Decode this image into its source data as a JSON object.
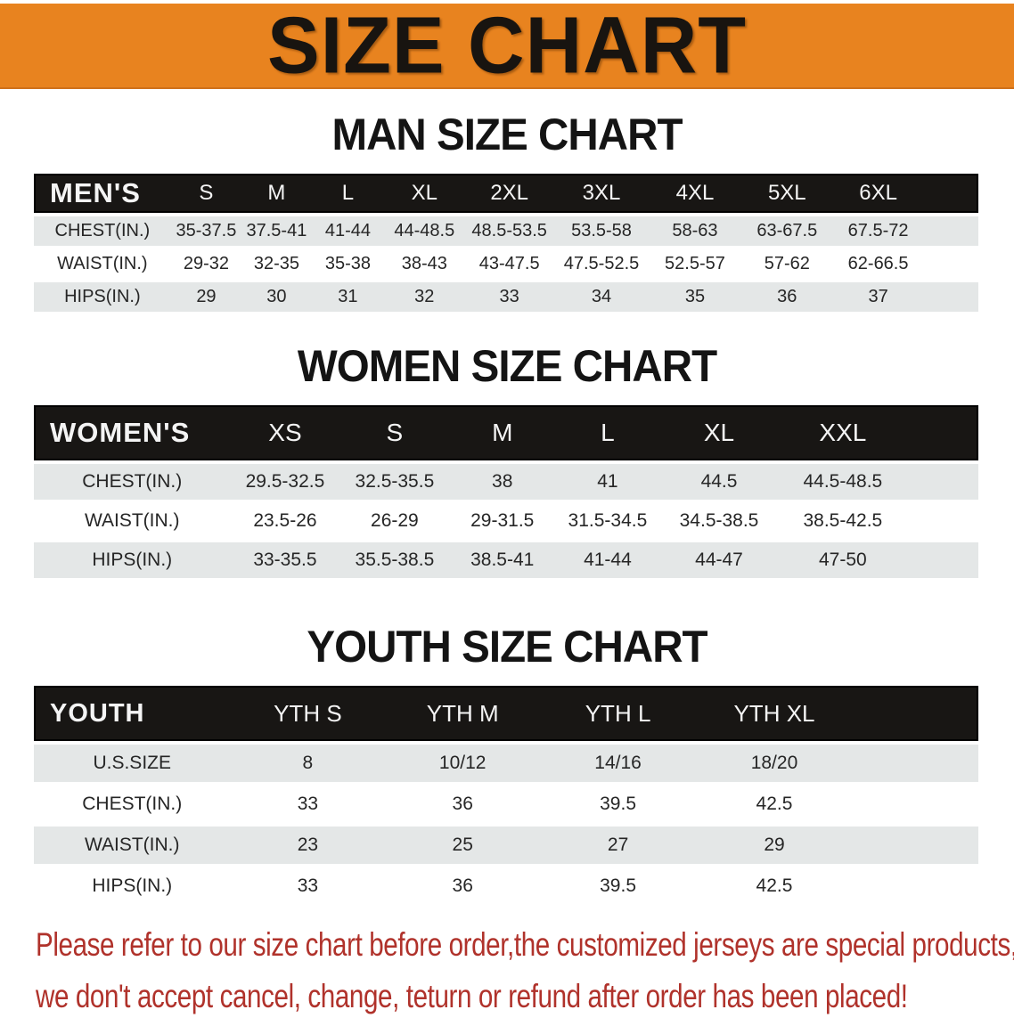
{
  "banner": {
    "title": "SIZE CHART"
  },
  "colors": {
    "banner_orange": "#e8831f",
    "table_header_black": "#181614",
    "row_gray": "#e4e7e7",
    "disclaimer_red": "#b0322b"
  },
  "sections": [
    {
      "heading": "MAN SIZE CHART",
      "table": {
        "header_label": "MEN'S",
        "columns": [
          "S",
          "M",
          "L",
          "XL",
          "2XL",
          "3XL",
          "4XL",
          "5XL",
          "6XL"
        ],
        "rows": [
          {
            "label": "CHEST(IN.)",
            "values": [
              "35-37.5",
              "37.5-41",
              "41-44",
              "44-48.5",
              "48.5-53.5",
              "53.5-58",
              "58-63",
              "63-67.5",
              "67.5-72"
            ]
          },
          {
            "label": "WAIST(IN.)",
            "values": [
              "29-32",
              "32-35",
              "35-38",
              "38-43",
              "43-47.5",
              "47.5-52.5",
              "52.5-57",
              "57-62",
              "62-66.5"
            ]
          },
          {
            "label": "HIPS(IN.)",
            "values": [
              "29",
              "30",
              "31",
              "32",
              "33",
              "34",
              "35",
              "36",
              "37"
            ]
          }
        ]
      }
    },
    {
      "heading": "WOMEN SIZE CHART",
      "table": {
        "header_label": "WOMEN'S",
        "columns": [
          "XS",
          "S",
          "M",
          "L",
          "XL",
          "XXL"
        ],
        "rows": [
          {
            "label": "CHEST(IN.)",
            "values": [
              "29.5-32.5",
              "32.5-35.5",
              "38",
              "41",
              "44.5",
              "44.5-48.5"
            ]
          },
          {
            "label": "WAIST(IN.)",
            "values": [
              "23.5-26",
              "26-29",
              "29-31.5",
              "31.5-34.5",
              "34.5-38.5",
              "38.5-42.5"
            ]
          },
          {
            "label": "HIPS(IN.)",
            "values": [
              "33-35.5",
              "35.5-38.5",
              "38.5-41",
              "41-44",
              "44-47",
              "47-50"
            ]
          }
        ]
      }
    },
    {
      "heading": "YOUTH SIZE CHART",
      "table": {
        "header_label": "YOUTH",
        "columns": [
          "YTH S",
          "YTH M",
          "YTH L",
          "YTH XL"
        ],
        "rows": [
          {
            "label": "U.S.SIZE",
            "values": [
              "8",
              "10/12",
              "14/16",
              "18/20"
            ]
          },
          {
            "label": "CHEST(IN.)",
            "values": [
              "33",
              "36",
              "39.5",
              "42.5"
            ]
          },
          {
            "label": "WAIST(IN.)",
            "values": [
              "23",
              "25",
              "27",
              "29"
            ]
          },
          {
            "label": "HIPS(IN.)",
            "values": [
              "33",
              "36",
              "39.5",
              "42.5"
            ]
          }
        ]
      }
    }
  ],
  "disclaimer": {
    "line1": "Please refer to our size chart before order,the customized jerseys are special products,",
    "line2": "we don't accept cancel, change, teturn or refund after order has been placed!"
  }
}
